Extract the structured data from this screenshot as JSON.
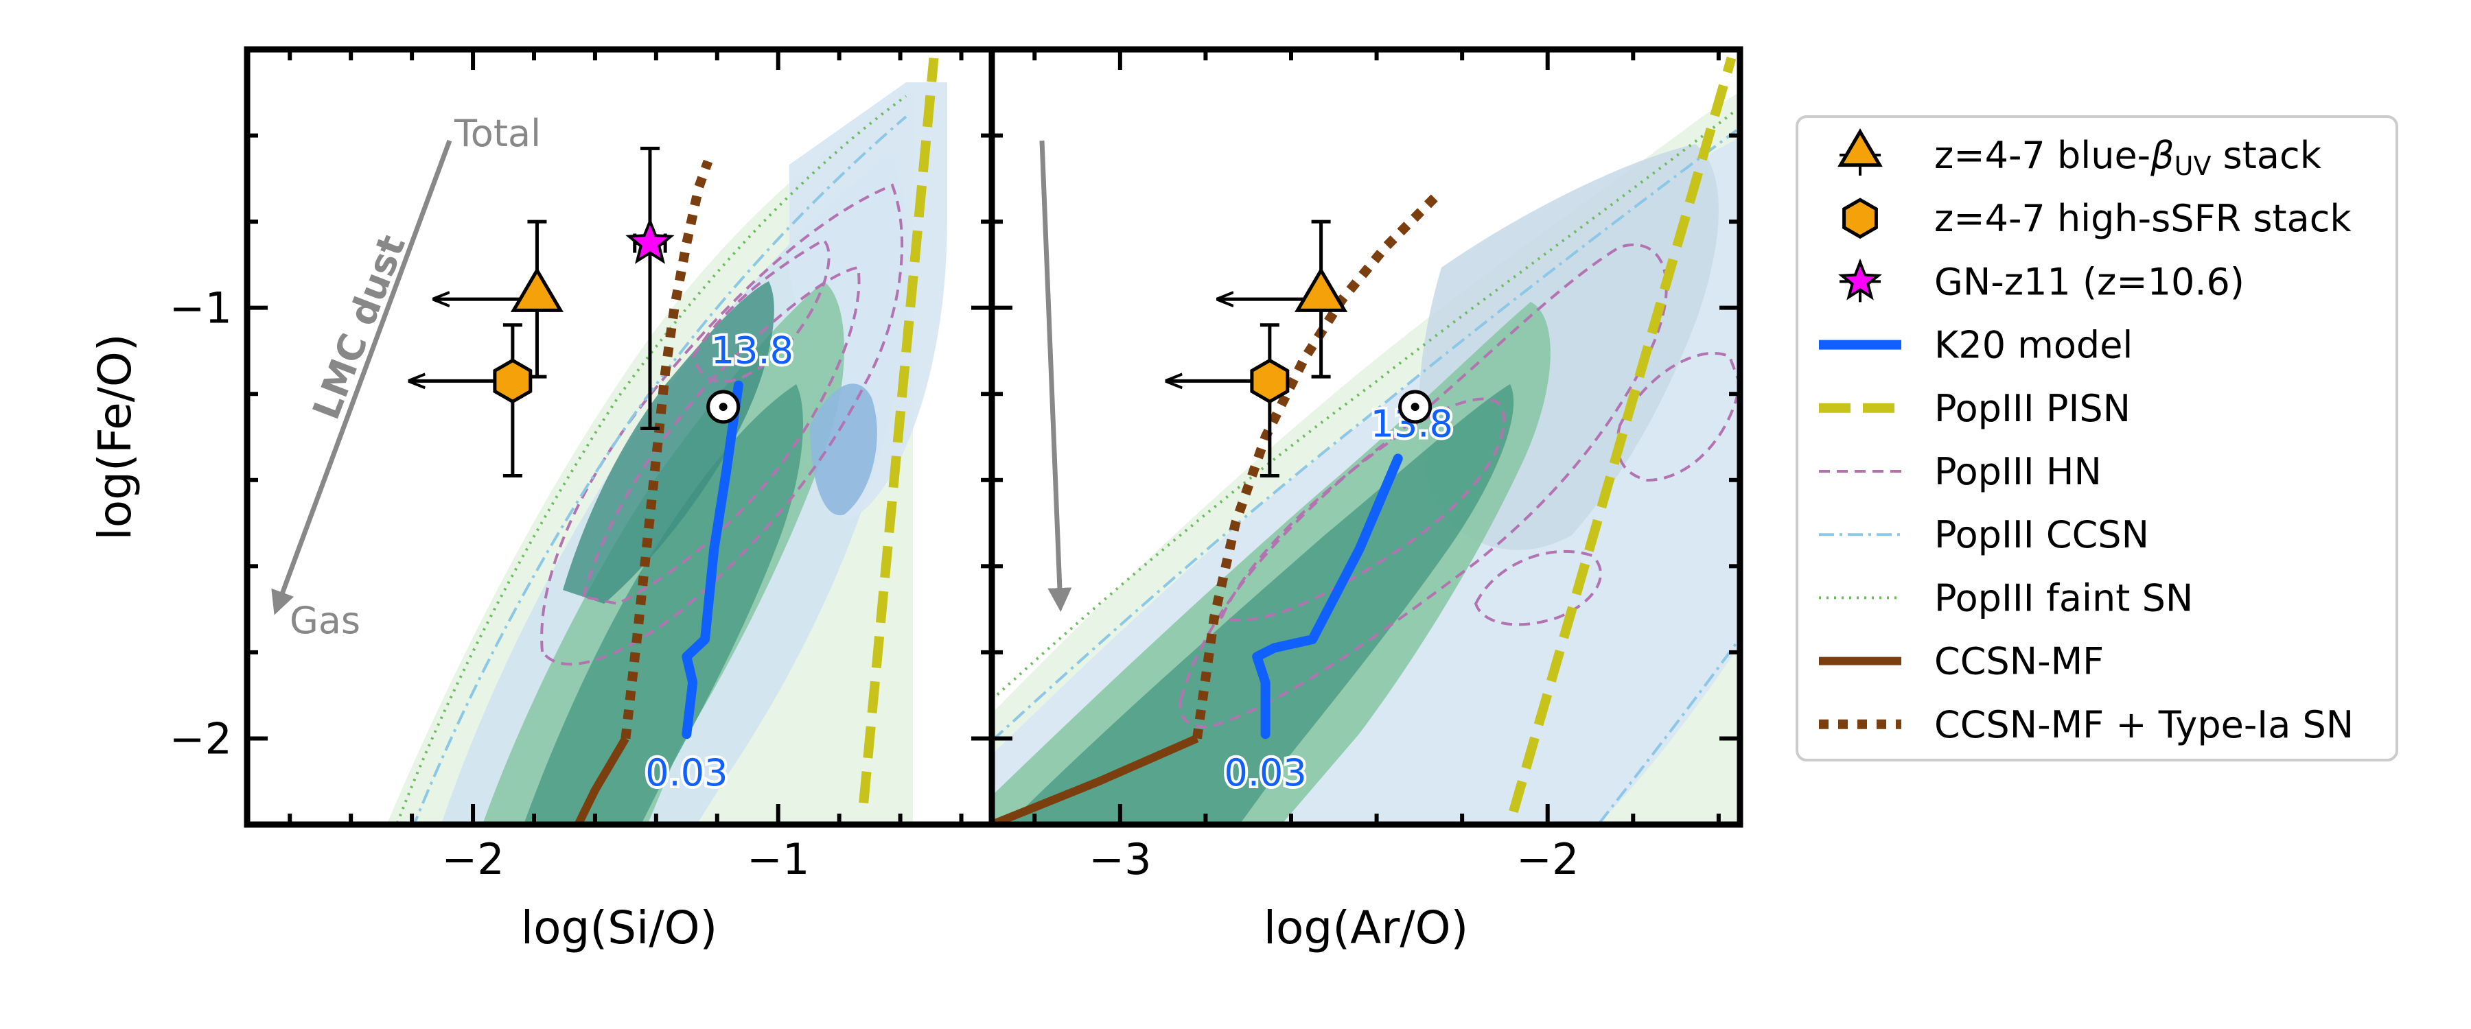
{
  "chart_data": [
    {
      "type": "scatter",
      "panel": "left",
      "xlabel": "log(Si/O)",
      "ylabel": "log(Fe/O)",
      "xlim": [
        -2.74,
        -0.3
      ],
      "ylim": [
        -2.2,
        -0.4
      ],
      "xticks": [
        {
          "value": -2,
          "label": "−2"
        },
        {
          "value": -1,
          "label": "−1"
        }
      ],
      "yticks": [
        {
          "value": -1,
          "label": "−1"
        },
        {
          "value": -2,
          "label": "−2"
        }
      ],
      "points": [
        {
          "name": "z=4-7 blue-βUV stack",
          "x": -1.79,
          "y": -0.98,
          "yerr": [
            0.18,
            0.18
          ],
          "upper_limit_x": true,
          "marker": "triangle",
          "color": "#f5a20a"
        },
        {
          "name": "z=4-7 high-sSFR stack",
          "x": -1.87,
          "y": -1.17,
          "yerr": [
            0.22,
            0.13
          ],
          "upper_limit_x": true,
          "marker": "hexagon",
          "color": "#f5a20a"
        },
        {
          "name": "GN-z11 (z=10.6)",
          "x": -1.42,
          "y": -0.85,
          "xerr": [
            0.05,
            0.05
          ],
          "yerr": [
            0.43,
            0.22
          ],
          "marker": "star",
          "color": "#ff00ff"
        }
      ],
      "solar": {
        "x": -1.18,
        "y": -1.23
      },
      "k20_model": {
        "x": [
          -1.3,
          -1.28,
          -1.3,
          -1.24,
          -1.21,
          -1.17,
          -1.13
        ],
        "y": [
          -1.99,
          -1.87,
          -1.81,
          -1.77,
          -1.56,
          -1.38,
          -1.18
        ],
        "label_start": "0.03",
        "label_end": "13.8"
      },
      "popiii_pisn": {
        "x": [
          -0.72,
          -0.49
        ],
        "y": [
          -2.15,
          -0.42
        ]
      },
      "ccsn_mf": {
        "x": [
          -1.69,
          -1.6,
          -1.5
        ],
        "y": [
          -2.25,
          -2.12,
          -2.0
        ]
      },
      "ccsn_mf_type_ia": {
        "x": [
          -1.5,
          -1.46,
          -1.43,
          -1.4,
          -1.37,
          -1.34,
          -1.3,
          -1.26,
          -1.23
        ],
        "y": [
          -2.0,
          -1.75,
          -1.55,
          -1.35,
          -1.15,
          -1.0,
          -0.85,
          -0.72,
          -0.66
        ]
      },
      "annotations": {
        "dust_arrow_label": "LMC dust",
        "dust_start": "Total",
        "dust_end": "Gas"
      }
    },
    {
      "type": "scatter",
      "panel": "right",
      "xlabel": "log(Ar/O)",
      "ylabel": "",
      "xlim": [
        -3.3,
        -1.55
      ],
      "ylim": [
        -2.2,
        -0.4
      ],
      "xticks": [
        {
          "value": -3,
          "label": "−3"
        },
        {
          "value": -2,
          "label": "−2"
        }
      ],
      "points": [
        {
          "name": "z=4-7 blue-βUV stack",
          "x": -2.53,
          "y": -0.98,
          "yerr": [
            0.18,
            0.18
          ],
          "upper_limit_x": true,
          "marker": "triangle",
          "color": "#f5a20a"
        },
        {
          "name": "z=4-7 high-sSFR stack",
          "x": -2.65,
          "y": -1.17,
          "yerr": [
            0.22,
            0.13
          ],
          "upper_limit_x": true,
          "marker": "hexagon",
          "color": "#f5a20a"
        }
      ],
      "solar": {
        "x": -2.31,
        "y": -1.23
      },
      "k20_model": {
        "x": [
          -2.66,
          -2.66,
          -2.68,
          -2.64,
          -2.55,
          -2.44,
          -2.35
        ],
        "y": [
          -1.99,
          -1.87,
          -1.81,
          -1.79,
          -1.77,
          -1.56,
          -1.35
        ],
        "label_start": "0.03",
        "label_end": "13.8"
      },
      "popiii_pisn": {
        "x": [
          -2.08,
          -1.57
        ],
        "y": [
          -2.17,
          -0.42
        ]
      },
      "ccsn_mf": {
        "x": [
          -3.3,
          -3.05,
          -2.82
        ],
        "y": [
          -2.2,
          -2.1,
          -2.0
        ]
      },
      "ccsn_mf_type_ia": {
        "x": [
          -2.82,
          -2.78,
          -2.73,
          -2.66,
          -2.57,
          -2.48,
          -2.38,
          -2.26
        ],
        "y": [
          -2.0,
          -1.72,
          -1.5,
          -1.3,
          -1.12,
          -0.98,
          -0.86,
          -0.74
        ]
      }
    }
  ],
  "legend": [
    {
      "key": "blue",
      "label_main": "z=4-7 blue-",
      "label_beta": "β",
      "label_sub": "UV",
      "label_tail": " stack",
      "style": "triangle"
    },
    {
      "key": "ssfr",
      "label": "z=4-7 high-sSFR stack",
      "style": "hexagon"
    },
    {
      "key": "gnz11",
      "label": "GN-z11 (z=10.6)",
      "style": "star"
    },
    {
      "key": "k20",
      "label": "K20 model",
      "style": "k20",
      "color": "#1060ff"
    },
    {
      "key": "pisn",
      "label": "PopIII PISN",
      "style": "pisn",
      "color": "#c8c31a"
    },
    {
      "key": "hn",
      "label": "PopIII HN",
      "style": "hn",
      "color": "#b273b0"
    },
    {
      "key": "ccsn",
      "label": "PopIII CCSN",
      "style": "ccsn",
      "color": "#8cc8e6"
    },
    {
      "key": "faint",
      "label": "PopIII faint SN",
      "style": "faint",
      "color": "#6dbb5e"
    },
    {
      "key": "ccsnmf",
      "label": "CCSN-MF",
      "style": "ccsnmf",
      "color": "#7b3e0e"
    },
    {
      "key": "ccsnmfia",
      "label": "CCSN-MF + Type-Ia SN",
      "style": "ccsnmfia",
      "color": "#7b3e0e"
    }
  ],
  "colors": {
    "marker_fill": "#f5a20a",
    "star_fill": "#ff00ff",
    "k20": "#1060ff",
    "pisn": "#c8c31a",
    "hn": "#b273b0",
    "ccsn": "#8cc8e6",
    "faint": "#6dbb5e",
    "ccsnmf": "#7b3e0e",
    "arrow": "#888888"
  }
}
